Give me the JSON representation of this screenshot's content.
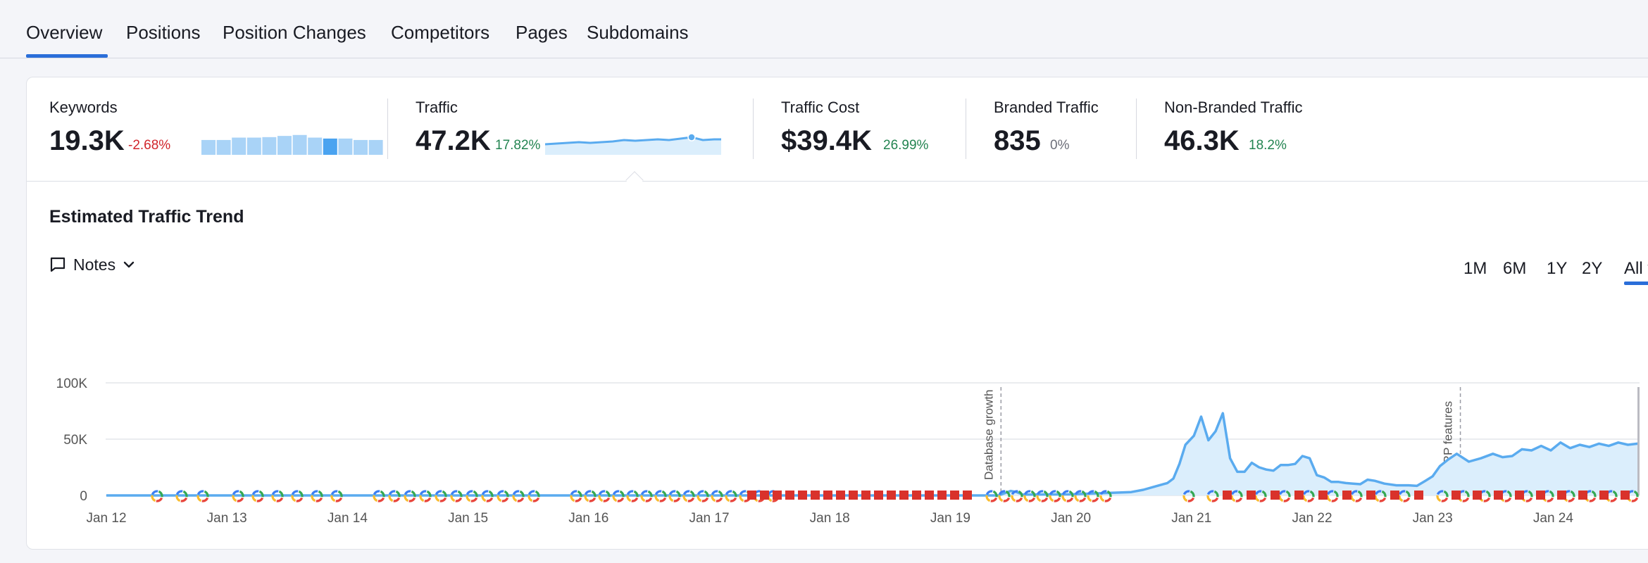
{
  "tabs": [
    "Overview",
    "Positions",
    "Position Changes",
    "Competitors",
    "Pages",
    "Subdomains"
  ],
  "metrics": {
    "keywords": {
      "label": "Keywords",
      "value": "19.3K",
      "change": "-2.68%",
      "spark": [
        0.62,
        0.62,
        0.72,
        0.72,
        0.74,
        0.79,
        0.83,
        0.72,
        0.68,
        0.68,
        0.62,
        0.62
      ]
    },
    "traffic": {
      "label": "Traffic",
      "value": "47.2K",
      "change": "17.82%"
    },
    "traffic_cost": {
      "label": "Traffic Cost",
      "value": "$39.4K",
      "change": "26.99%"
    },
    "branded": {
      "label": "Branded Traffic",
      "value": "835",
      "change": "0%"
    },
    "non_branded": {
      "label": "Non-Branded Traffic",
      "value": "46.3K",
      "change": "18.2%"
    }
  },
  "section_title": "Estimated Traffic Trend",
  "notes_label": "Notes",
  "ranges": [
    "1M",
    "6M",
    "1Y",
    "2Y",
    "All t"
  ],
  "colors": {
    "accent": "#2a6ed9",
    "line": "#5aabef",
    "fill": "#dbeefc",
    "negative": "#d1262c",
    "positive": "#238451",
    "flag_red": "#d9322b"
  },
  "chart_data": {
    "type": "area",
    "title": "Estimated Traffic Trend",
    "xlabel": "",
    "ylabel": "",
    "y_ticks": [
      "0",
      "50K",
      "100K"
    ],
    "ylim": [
      0,
      100000
    ],
    "x_ticks": [
      "Jan 12",
      "Jan 13",
      "Jan 14",
      "Jan 15",
      "Jan 16",
      "Jan 17",
      "Jan 18",
      "Jan 19",
      "Jan 20",
      "Jan 21",
      "Jan 22",
      "Jan 23",
      "Jan 24"
    ],
    "grid": true,
    "annotations": [
      {
        "label": "Database growth",
        "x": 2019.42
      },
      {
        "label": "SERP features",
        "x": 2023.23
      }
    ],
    "series": [
      {
        "values_x": [
          2012.0,
          2019.4,
          2019.45,
          2019.5,
          2019.55,
          2019.6,
          2020.0,
          2020.5,
          2020.6,
          2020.7,
          2020.8,
          2020.85,
          2020.9,
          2020.95,
          2021.02,
          2021.08,
          2021.14,
          2021.2,
          2021.26,
          2021.32,
          2021.38,
          2021.44,
          2021.5,
          2021.56,
          2021.62,
          2021.68,
          2021.74,
          2021.8,
          2021.86,
          2021.92,
          2021.98,
          2022.04,
          2022.1,
          2022.16,
          2022.22,
          2022.28,
          2022.34,
          2022.4,
          2022.46,
          2022.52,
          2022.6,
          2022.7,
          2022.8,
          2022.87,
          2022.94,
          2023.0,
          2023.06,
          2023.13,
          2023.2,
          2023.3,
          2023.4,
          2023.5,
          2023.58,
          2023.66,
          2023.74,
          2023.82,
          2023.9,
          2023.98,
          2024.06,
          2024.14,
          2024.22,
          2024.3,
          2024.38,
          2024.46,
          2024.54,
          2024.62,
          2024.7,
          2024.78
        ],
        "values": [
          0,
          0,
          2000,
          4000,
          3000,
          800,
          1000,
          3000,
          5000,
          8000,
          11000,
          15000,
          28000,
          45000,
          53000,
          70000,
          49000,
          57000,
          73000,
          33000,
          21000,
          21000,
          29000,
          25000,
          23000,
          22000,
          27000,
          27000,
          28000,
          35000,
          33000,
          18000,
          16000,
          12000,
          12000,
          11000,
          10500,
          10000,
          14000,
          13000,
          10500,
          9000,
          9000,
          8500,
          13000,
          17000,
          26000,
          32000,
          37000,
          30000,
          33000,
          37000,
          34000,
          35000,
          41000,
          40000,
          44000,
          40000,
          47000,
          42000,
          45000,
          43000,
          46000,
          44000,
          47000,
          45000,
          46000,
          45000
        ]
      }
    ]
  }
}
